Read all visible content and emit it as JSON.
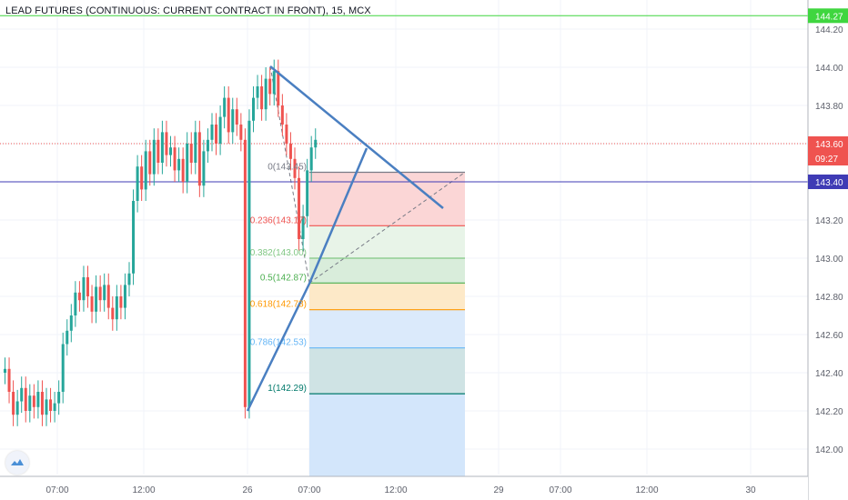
{
  "header": {
    "title": "LEAD FUTURES (CONTINUOUS: CURRENT CONTRACT IN FRONT), 15, MCX"
  },
  "colors": {
    "up": "#26a69a",
    "down": "#ef5350",
    "blue_line": "#4a7fc1",
    "purple_line": "#3f3bb5",
    "green_line": "#3fd63f",
    "red_dotted": "#ef5350"
  },
  "chart_data": {
    "type": "candlestick",
    "y_axis": {
      "ticks": [
        "144.20",
        "144.00",
        "143.80",
        "143.60",
        "143.40",
        "143.20",
        "143.00",
        "142.80",
        "142.60",
        "142.40",
        "142.20",
        "142.00"
      ],
      "range": [
        141.92,
        144.29
      ]
    },
    "x_axis": {
      "ticks": [
        "07:00",
        "12:00",
        "26",
        "07:00",
        "12:00",
        "29",
        "07:00",
        "12:00",
        "30"
      ]
    },
    "price_tags": [
      {
        "label": "144.27",
        "value": 144.27,
        "color": "#3fd63f"
      },
      {
        "label": "143.60",
        "value": 143.6,
        "color": "#ef5350",
        "countdown": "09:27"
      },
      {
        "label": "143.40",
        "value": 143.4,
        "color": "#3f3bb5"
      }
    ],
    "horizontal_lines": [
      {
        "value": 144.27,
        "style": "solid",
        "color": "#3fd63f"
      },
      {
        "value": 143.6,
        "style": "dotted",
        "color": "#ef5350"
      },
      {
        "value": 143.4,
        "style": "solid",
        "color": "#3f3bb5"
      }
    ],
    "fibonacci": [
      {
        "label": "0(143.45)",
        "value": 143.45,
        "color": "#787b86"
      },
      {
        "label": "0.236(143.17)",
        "value": 143.17,
        "color": "#ef5350"
      },
      {
        "label": "0.382(143.00)",
        "value": 143.0,
        "color": "#81c784"
      },
      {
        "label": "0.5(142.87)",
        "value": 142.87,
        "color": "#4caf50"
      },
      {
        "label": "0.618(142.73)",
        "value": 142.73,
        "color": "#ff9800"
      },
      {
        "label": "0.786(142.53)",
        "value": 142.53,
        "color": "#64b5f6"
      },
      {
        "label": "1(142.29)",
        "value": 142.29,
        "color": "#00796b"
      }
    ]
  }
}
